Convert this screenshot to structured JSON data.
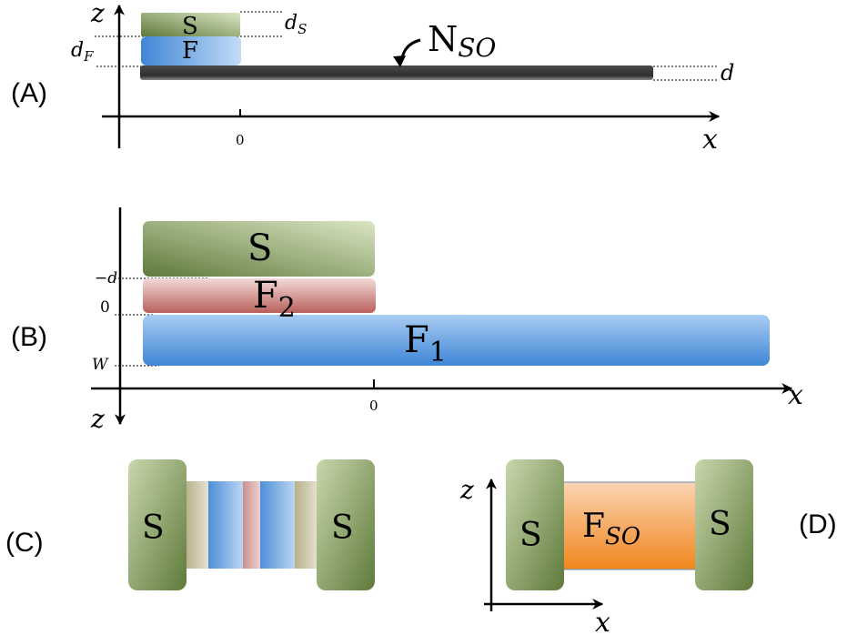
{
  "panels": {
    "a": {
      "tag": "(A)",
      "axis_x": "x",
      "axis_z": "z",
      "tick_zero": "0",
      "label_ds_main": "d",
      "label_ds_sub": "S",
      "label_df_main": "d",
      "label_df_sub": "F",
      "label_d": "d",
      "layer_s": "S",
      "layer_f": "F",
      "nso_main": "N",
      "nso_sub": "SO"
    },
    "b": {
      "tag": "(B)",
      "axis_x": "x",
      "axis_z": "z",
      "tick_zero": "0",
      "label_minus_d": "−d",
      "label_zero": "0",
      "label_w": "W",
      "layer_s": "S",
      "layer_f2_main": "F",
      "layer_f2_sub": "2",
      "layer_f1_main": "F",
      "layer_f1_sub": "1"
    },
    "c": {
      "tag": "(C)",
      "left_s": "S",
      "right_s": "S"
    },
    "d": {
      "tag": "(D)",
      "axis_x": "x",
      "axis_z": "z",
      "left_s": "S",
      "right_s": "S",
      "fso_main": "F",
      "fso_sub": "SO"
    }
  },
  "colors": {
    "superconductor": "#7a8f55",
    "ferromagnet_blue": "#5b9bdc",
    "ferromagnet_red": "#c47d7a",
    "nso_gray": "#3a3a3a",
    "fso_orange": "#f29a3c"
  }
}
